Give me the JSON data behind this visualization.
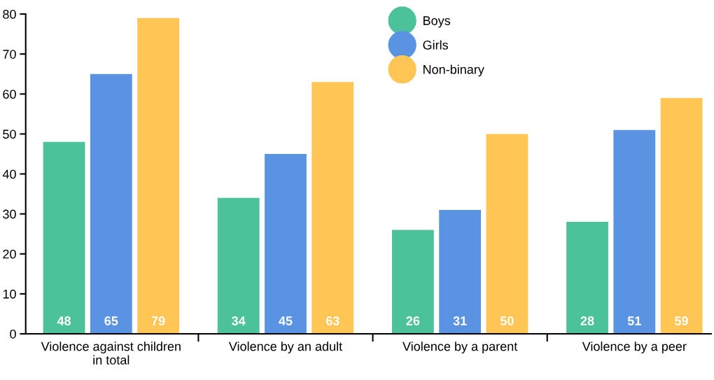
{
  "chart_data": {
    "type": "bar",
    "categories": [
      "Violence against children\nin total",
      "Violence by an adult",
      "Violence by a parent",
      "Violence by a peer"
    ],
    "series": [
      {
        "name": "Boys",
        "color": "#4cc29b",
        "values": [
          48,
          34,
          26,
          28
        ]
      },
      {
        "name": "Girls",
        "color": "#5b93e3",
        "values": [
          65,
          45,
          31,
          51
        ]
      },
      {
        "name": "Non-binary",
        "color": "#ffc655",
        "values": [
          79,
          63,
          50,
          59
        ]
      }
    ],
    "ylim": [
      0,
      80
    ],
    "yticks": [
      0,
      10,
      20,
      30,
      40,
      50,
      60,
      70,
      80
    ],
    "data_labels": true,
    "grid": false,
    "legend": "top",
    "marker": "circle"
  }
}
